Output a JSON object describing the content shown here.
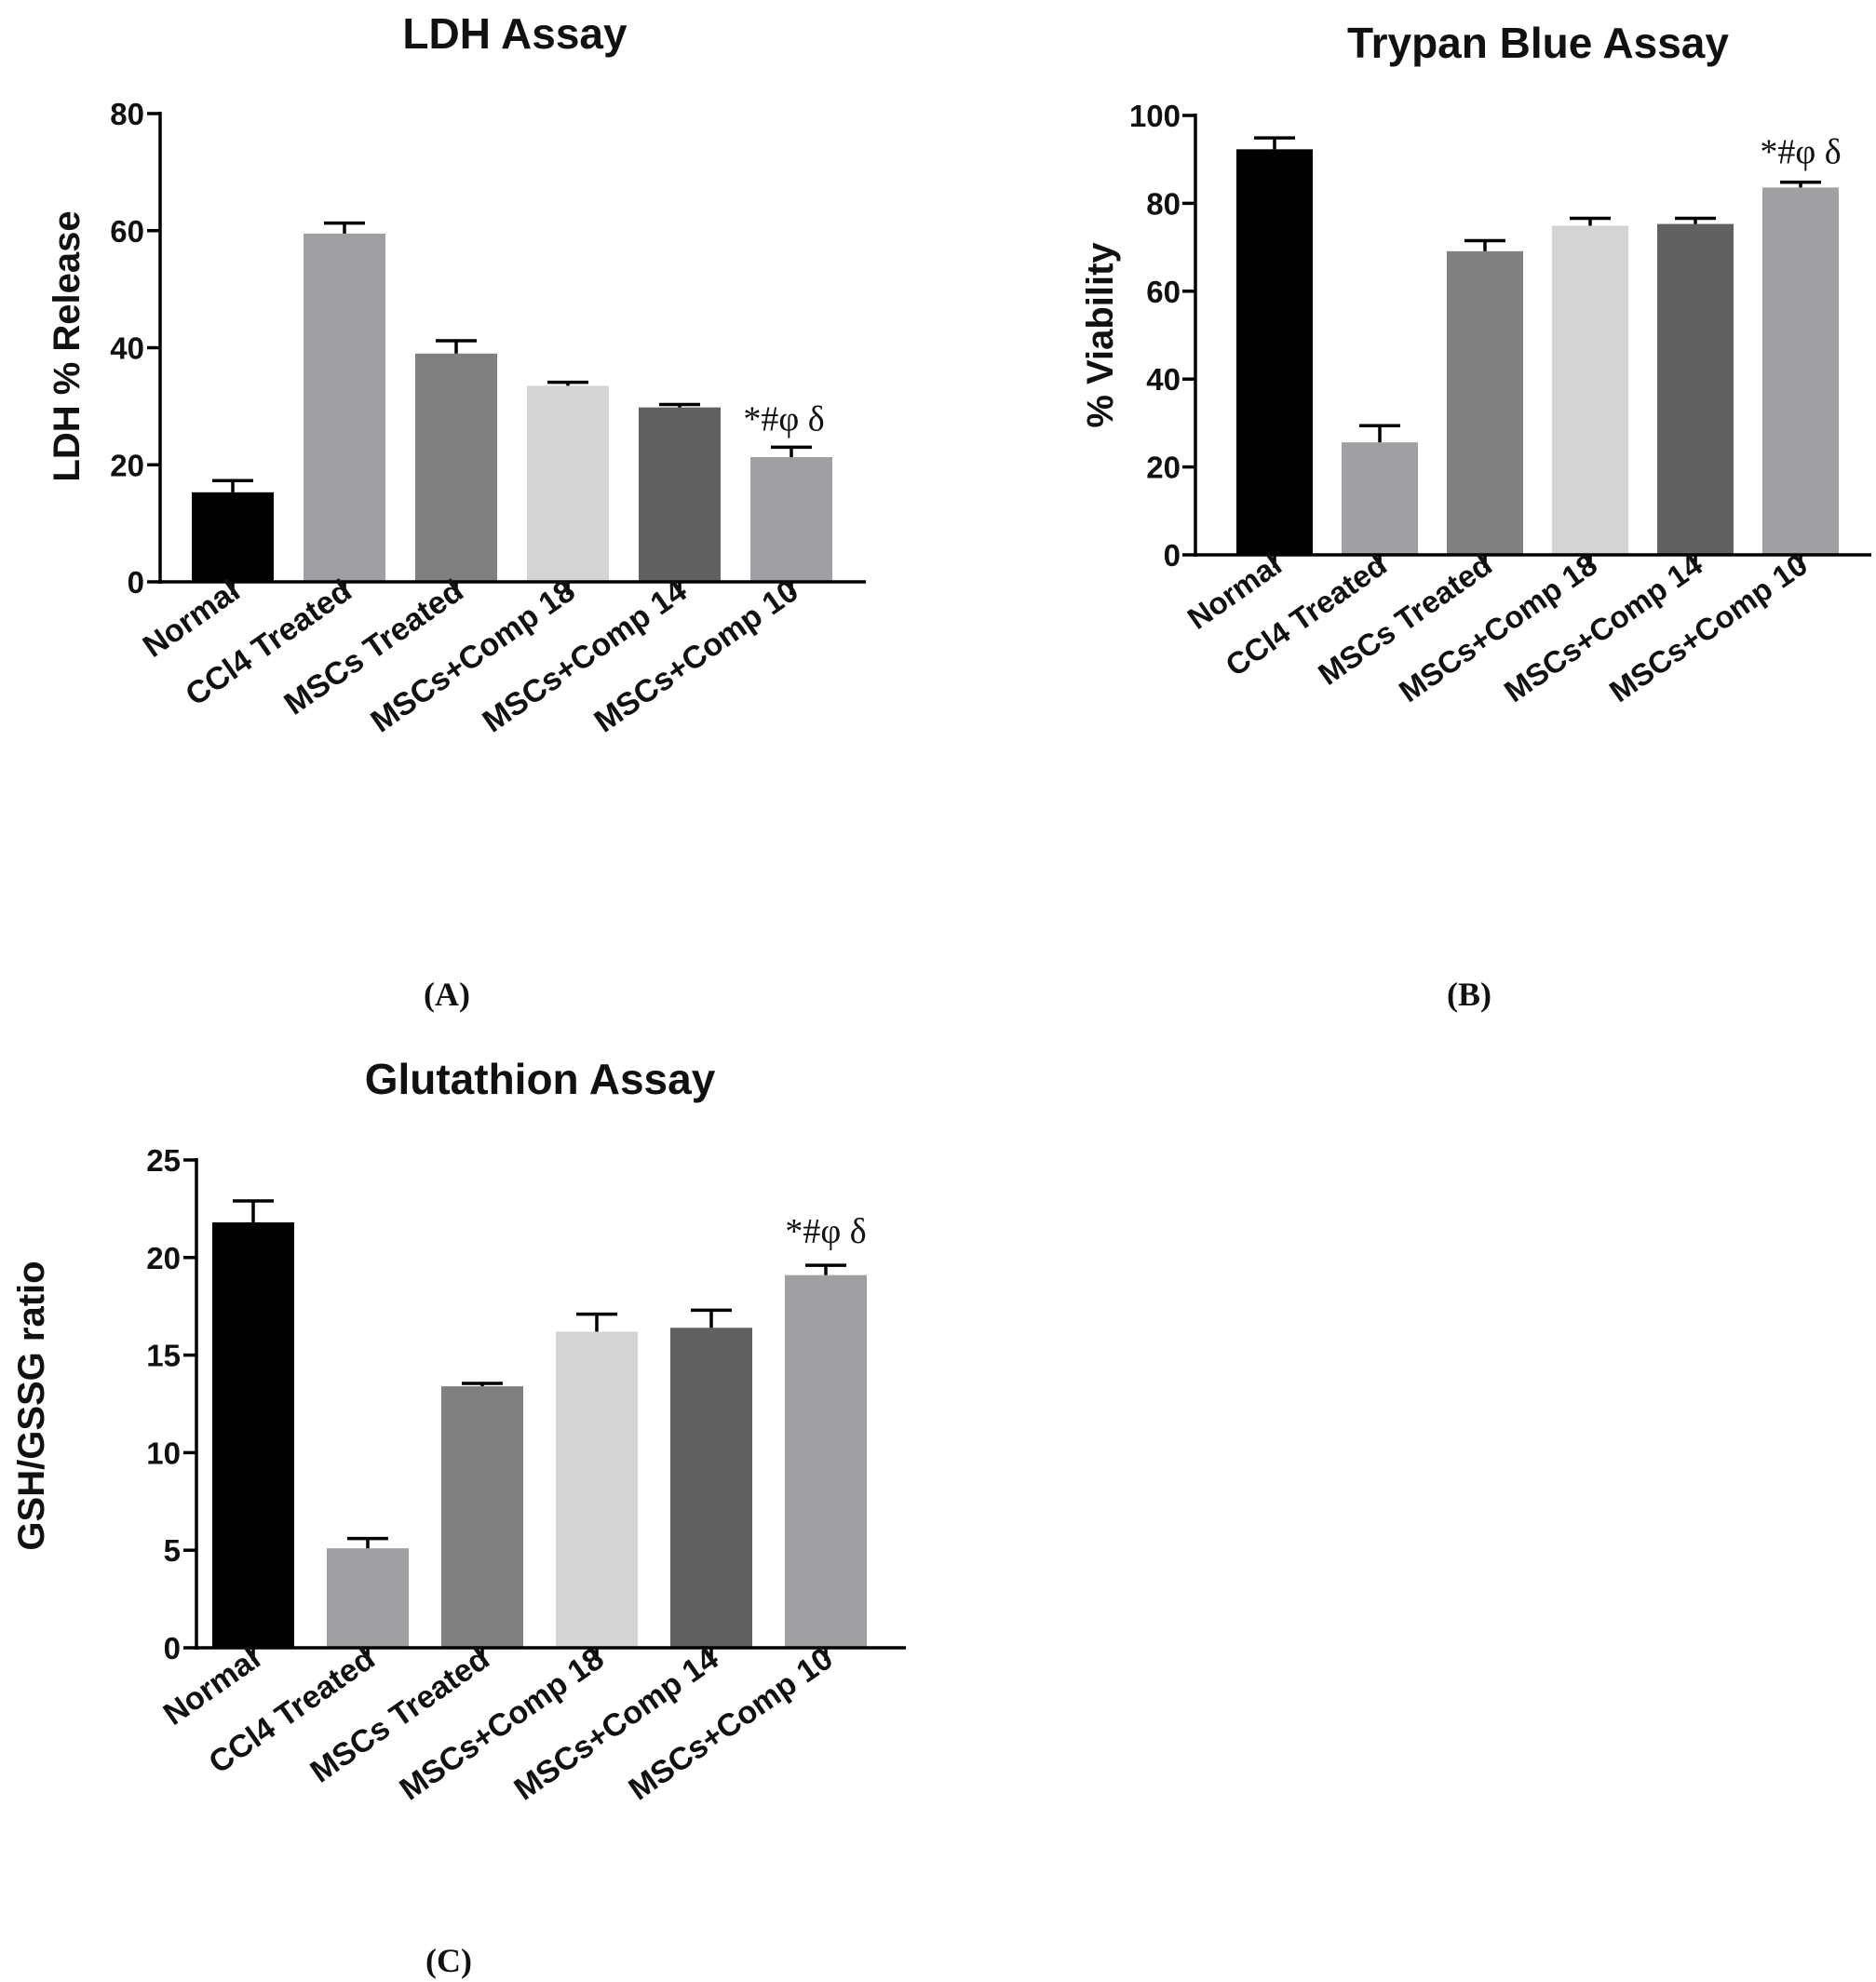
{
  "chart_data": [
    {
      "type": "bar",
      "panel": "(A)",
      "title": "LDH Assay",
      "xlabel": "",
      "ylabel": "LDH % Release",
      "ylim": [
        0,
        80
      ],
      "yticks": [
        0,
        20,
        40,
        60,
        80
      ],
      "categories": [
        "Normal",
        "CCl4 Treated",
        "MSCs Treated",
        "MSCs+Comp 18",
        "MSCs+Comp 14",
        "MSCs+Comp 10"
      ],
      "values": [
        15.3,
        59.5,
        39.0,
        33.5,
        29.8,
        21.3
      ],
      "errors": [
        2.0,
        1.8,
        2.2,
        0.6,
        0.5,
        1.7
      ],
      "colors": [
        "#000000",
        "#a0a0a4",
        "#808080",
        "#d4d4d4",
        "#616161",
        "#a0a0a4"
      ],
      "annotation": {
        "text": "*#φ δ",
        "category_index": 5
      }
    },
    {
      "type": "bar",
      "panel": "(B)",
      "title": "Trypan Blue Assay",
      "xlabel": "",
      "ylabel": "% Viability",
      "ylim": [
        0,
        100
      ],
      "yticks": [
        0,
        20,
        40,
        60,
        80,
        100
      ],
      "categories": [
        "Normal",
        "CCl4 Treated",
        "MSCs Treated",
        "MSCs+Comp 18",
        "MSCs+Comp 14",
        "MSCs+Comp 10"
      ],
      "values": [
        92.3,
        25.6,
        69.1,
        74.9,
        75.3,
        83.6
      ],
      "errors": [
        2.6,
        3.8,
        2.4,
        1.7,
        1.3,
        1.2
      ],
      "colors": [
        "#000000",
        "#a0a0a4",
        "#808080",
        "#d4d4d4",
        "#616161",
        "#a0a0a4"
      ],
      "annotation": {
        "text": "*#φ δ",
        "category_index": 5
      }
    },
    {
      "type": "bar",
      "panel": "(C)",
      "title": "Glutathion Assay",
      "xlabel": "",
      "ylabel": "GSH/GSSG ratio",
      "ylim": [
        0,
        25
      ],
      "yticks": [
        0,
        5,
        10,
        15,
        20,
        25
      ],
      "categories": [
        "Normal",
        "CCl4 Treated",
        "MSCs Treated",
        "MSCs+Comp 18",
        "MSCs+Comp 14",
        "MSCs+Comp 10"
      ],
      "values": [
        21.8,
        5.1,
        13.4,
        16.2,
        16.4,
        19.1
      ],
      "errors": [
        1.1,
        0.5,
        0.15,
        0.9,
        0.9,
        0.5
      ],
      "colors": [
        "#000000",
        "#a0a0a4",
        "#808080",
        "#d4d4d4",
        "#616161",
        "#a0a0a4"
      ],
      "annotation": {
        "text": "*#φ δ",
        "category_index": 5
      }
    }
  ]
}
